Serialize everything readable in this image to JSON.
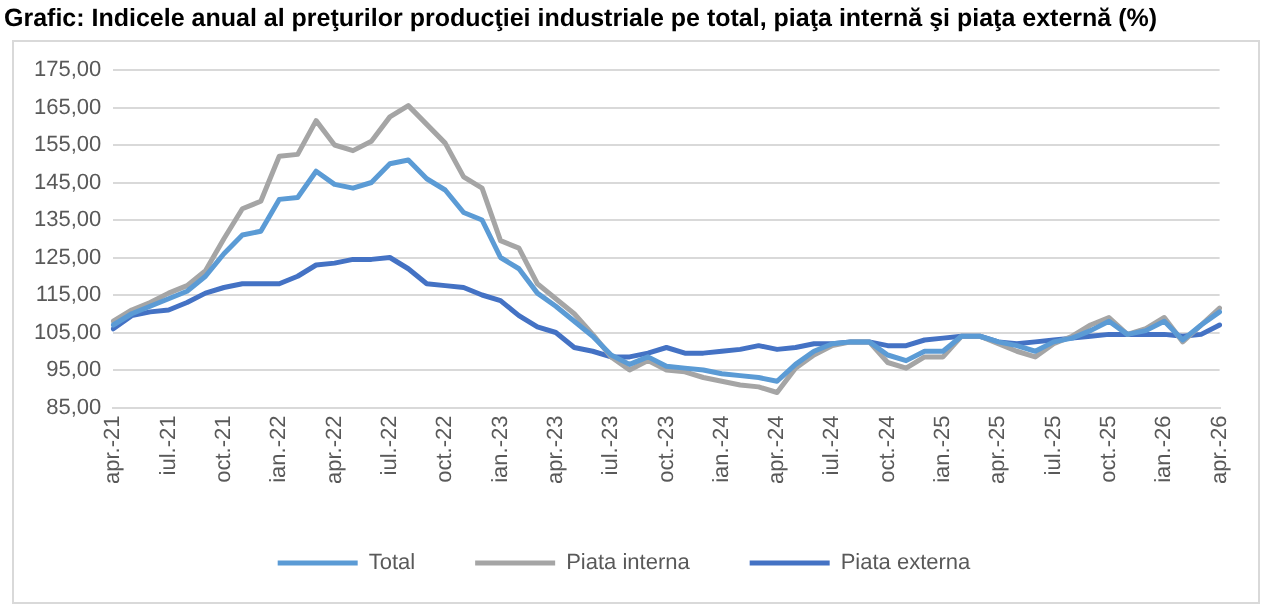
{
  "chart_data": {
    "type": "line",
    "title": "Grafic: Indicele anual al preţurilor producţiei industriale pe total, piaţa internă şi piaţa externă (%)",
    "categories": [
      "apr.-21",
      null,
      null,
      "iul.-21",
      null,
      null,
      "oct.-21",
      null,
      null,
      "ian.-22",
      null,
      null,
      "apr.-22",
      null,
      null,
      "iul.-22",
      null,
      null,
      "oct.-22",
      null,
      null,
      "ian.-23",
      null,
      null,
      "apr.-23",
      null,
      null,
      "iul.-23",
      null,
      null,
      "oct.-23",
      null,
      null,
      "ian.-24",
      null,
      null,
      "apr.-24",
      null,
      null,
      "iul.-24",
      null,
      null,
      "oct.-24",
      null,
      null,
      "ian.-25",
      null,
      null,
      "apr.-25",
      null,
      null,
      "iul.-25",
      null,
      null,
      "oct.-25",
      null,
      null,
      "ian.-26",
      null,
      null,
      "apr.-26"
    ],
    "series": [
      {
        "name": "Total",
        "color": "#5b9bd5",
        "values": [
          107,
          110,
          112,
          114,
          116,
          120,
          126,
          131,
          132,
          140.5,
          141,
          148,
          144.5,
          143.5,
          145,
          150,
          151,
          146,
          143,
          137,
          135,
          125,
          122,
          115.5,
          112,
          108,
          104,
          99,
          96.5,
          98.5,
          96,
          95.5,
          95,
          94,
          93.5,
          93,
          92,
          96.5,
          100,
          102,
          102.5,
          102.5,
          99,
          97.5,
          100,
          100,
          104,
          104,
          102.5,
          101.5,
          100,
          102.5,
          103.5,
          105.5,
          108,
          104.5,
          105.5,
          108,
          103,
          107,
          110.5
        ]
      },
      {
        "name": "Piata interna",
        "color": "#a5a5a5",
        "values": [
          108,
          111,
          113,
          115.5,
          117.5,
          121.5,
          130,
          138,
          140,
          152,
          152.5,
          161.5,
          155,
          153.5,
          156,
          162.5,
          165.5,
          160.5,
          155.5,
          146.5,
          143.5,
          129.5,
          127.5,
          118,
          114,
          110,
          104.5,
          98.5,
          95,
          97.5,
          95,
          94.5,
          93,
          92,
          91,
          90.5,
          89,
          95.5,
          99,
          101.5,
          102.5,
          102.5,
          97,
          95.5,
          98.5,
          98.5,
          104,
          104,
          102,
          100,
          98.5,
          102,
          104,
          107,
          109,
          104.5,
          106,
          109,
          102.5,
          107,
          111.5
        ]
      },
      {
        "name": "Piata externa",
        "color": "#4472c4",
        "values": [
          106,
          109.5,
          110.5,
          111,
          113,
          115.5,
          117,
          118,
          118,
          118,
          120,
          123,
          123.5,
          124.5,
          124.5,
          125,
          122,
          118,
          117.5,
          117,
          115,
          113.5,
          109.5,
          106.5,
          105,
          101,
          100,
          98.5,
          98.5,
          99.5,
          101,
          99.5,
          99.5,
          100,
          100.5,
          101.5,
          100.5,
          101,
          102,
          102,
          102.5,
          102.5,
          101.5,
          101.5,
          103,
          103.5,
          104,
          104,
          102.5,
          102,
          102.5,
          103,
          103.5,
          104,
          104.5,
          104.5,
          104.5,
          104.5,
          104,
          104.5,
          107
        ]
      }
    ],
    "ylim": [
      85,
      175
    ],
    "yticks": [
      {
        "value": 85,
        "label": "85,00"
      },
      {
        "value": 95,
        "label": "95,00"
      },
      {
        "value": 105,
        "label": "105,00"
      },
      {
        "value": 115,
        "label": "115,00"
      },
      {
        "value": 125,
        "label": "125,00"
      },
      {
        "value": 135,
        "label": "135,00"
      },
      {
        "value": 145,
        "label": "145,00"
      },
      {
        "value": 155,
        "label": "155,00"
      },
      {
        "value": 165,
        "label": "165,00"
      },
      {
        "value": 175,
        "label": "175,00"
      }
    ],
    "grid": "y",
    "legend": "bottom",
    "marker": "none",
    "line_style": "solid"
  }
}
